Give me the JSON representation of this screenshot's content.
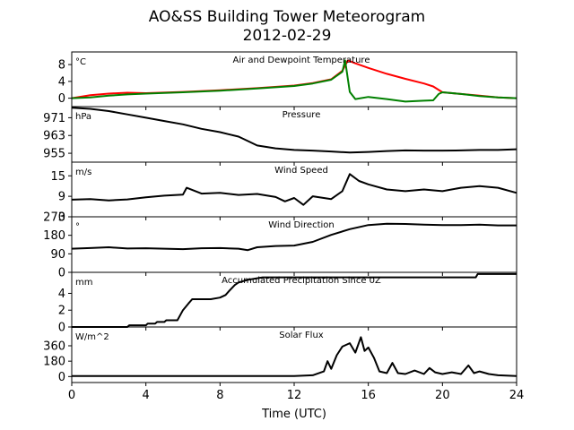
{
  "figure": {
    "title_line1": "AO&SS Building Tower Meteorogram",
    "title_line2": "2012-02-29",
    "xlabel": "Time (UTC)"
  },
  "chart_data": [
    {
      "type": "line",
      "title": "Air and Dewpoint Temperature",
      "unit": "°C",
      "xlim": [
        0,
        24
      ],
      "ylim": [
        -2,
        11
      ],
      "yticks": [
        "0",
        "4",
        "8"
      ],
      "ytick_values": [
        0,
        4,
        8
      ],
      "xtick_values": [
        0,
        4,
        8,
        12,
        16,
        20,
        24
      ],
      "xtick_labels": [
        "0",
        "4",
        "8",
        "12",
        "16",
        "20",
        "24"
      ],
      "series": [
        {
          "color": "#ff0000",
          "x": [
            0,
            1,
            2,
            3,
            4,
            6,
            8,
            10,
            12,
            13,
            14,
            14.6,
            14.9,
            15.3,
            16,
            17,
            18,
            19,
            19.5,
            20,
            21,
            22,
            23,
            24
          ],
          "values": [
            0,
            0.7,
            1.1,
            1.3,
            1.2,
            1.5,
            1.9,
            2.4,
            3.0,
            3.6,
            4.5,
            6.5,
            9.0,
            8.3,
            7.2,
            5.8,
            4.6,
            3.5,
            2.8,
            1.4,
            1.0,
            0.6,
            0.2,
            0
          ]
        },
        {
          "color": "#008000",
          "x": [
            0,
            1,
            2,
            3,
            4,
            6,
            8,
            10,
            12,
            13,
            14,
            14.6,
            14.75,
            15,
            15.3,
            16,
            17,
            18,
            19,
            19.5,
            19.8,
            20,
            21,
            22,
            23,
            24
          ],
          "values": [
            0,
            0.2,
            0.6,
            0.9,
            1.1,
            1.4,
            1.8,
            2.3,
            2.9,
            3.5,
            4.4,
            6.3,
            9.0,
            1.5,
            -0.2,
            0.3,
            -0.2,
            -0.8,
            -0.6,
            -0.5,
            1.0,
            1.4,
            1.0,
            0.5,
            0.2,
            0
          ]
        }
      ]
    },
    {
      "type": "line",
      "title": "Pressure",
      "unit": "hPa",
      "xlim": [
        0,
        24
      ],
      "ylim": [
        951,
        976
      ],
      "yticks": [
        "971",
        "963",
        "955"
      ],
      "ytick_values": [
        971,
        963,
        955
      ],
      "xtick_values": [
        0,
        4,
        8,
        12,
        16,
        20,
        24
      ],
      "series": [
        {
          "color": "#000000",
          "x": [
            0,
            1,
            2,
            3,
            4,
            5,
            6,
            7,
            8,
            9,
            9.5,
            10,
            11,
            12,
            13,
            14,
            15,
            16,
            17,
            18,
            19,
            20,
            21,
            22,
            23,
            24
          ],
          "values": [
            975.5,
            975,
            974,
            972.5,
            971,
            969.5,
            968,
            966,
            964.5,
            962.5,
            960.5,
            958.5,
            957.2,
            956.5,
            956.2,
            955.8,
            955.3,
            955.6,
            956,
            956.3,
            956.2,
            956.2,
            956.3,
            956.5,
            956.5,
            956.8
          ]
        }
      ]
    },
    {
      "type": "line",
      "title": "Wind Speed",
      "unit": "m/s",
      "xlim": [
        0,
        24
      ],
      "ylim": [
        3,
        19
      ],
      "yticks": [
        "15",
        "9",
        "3"
      ],
      "ytick_values": [
        15,
        9,
        3
      ],
      "xtick_values": [
        0,
        4,
        8,
        12,
        16,
        20,
        24
      ],
      "series": [
        {
          "color": "#000000",
          "x": [
            0,
            1,
            2,
            3,
            4,
            5,
            6,
            6.2,
            7,
            8,
            9,
            10,
            11,
            11.5,
            12,
            12.5,
            13,
            14,
            14.6,
            15,
            15.5,
            16,
            17,
            18,
            19,
            20,
            21,
            22,
            23,
            24
          ],
          "values": [
            8,
            8.2,
            7.8,
            8.1,
            8.7,
            9.2,
            9.5,
            11.5,
            9.8,
            10,
            9.4,
            9.7,
            8.8,
            7.5,
            8.5,
            6.5,
            9,
            8.2,
            10.5,
            15.5,
            13.5,
            12.5,
            11,
            10.5,
            11,
            10.5,
            11.5,
            12,
            11.5,
            10
          ]
        }
      ]
    },
    {
      "type": "line",
      "title": "Wind Direction",
      "unit": "°",
      "xlim": [
        0,
        24
      ],
      "ylim": [
        0,
        270
      ],
      "yticks": [
        "270",
        "180",
        "90",
        "0"
      ],
      "ytick_values": [
        270,
        180,
        90,
        0
      ],
      "xtick_values": [
        0,
        4,
        8,
        12,
        16,
        20,
        24
      ],
      "series": [
        {
          "color": "#000000",
          "x": [
            0,
            1,
            2,
            3,
            4,
            5,
            6,
            7,
            8,
            9,
            9.5,
            10,
            11,
            12,
            13,
            14,
            15,
            16,
            17,
            18,
            19,
            20,
            21,
            22,
            23,
            24
          ],
          "values": [
            115,
            118,
            122,
            116,
            117,
            115,
            113,
            117,
            118,
            115,
            108,
            122,
            128,
            130,
            148,
            182,
            210,
            230,
            236,
            235,
            232,
            230,
            230,
            232,
            228,
            228
          ]
        }
      ]
    },
    {
      "type": "line",
      "title": "Accumulated Precipitation Since 0Z",
      "unit": "mm",
      "xlim": [
        0,
        24
      ],
      "ylim": [
        0,
        6.5
      ],
      "yticks": [
        "4",
        "2",
        "0"
      ],
      "ytick_values": [
        4,
        2,
        0
      ],
      "xtick_values": [
        0,
        4,
        8,
        12,
        16,
        20,
        24
      ],
      "series": [
        {
          "color": "#000000",
          "x": [
            0,
            3,
            3.1,
            4,
            4.1,
            4.5,
            4.6,
            5,
            5.1,
            5.7,
            6,
            6.3,
            6.5,
            7,
            7.5,
            8,
            8.3,
            8.5,
            8.8,
            9,
            9.5,
            10,
            10.3,
            15,
            16,
            17,
            21.8,
            21.9,
            24
          ],
          "values": [
            0,
            0,
            0.2,
            0.2,
            0.4,
            0.4,
            0.6,
            0.6,
            0.8,
            0.8,
            2.0,
            2.8,
            3.3,
            3.3,
            3.3,
            3.5,
            3.8,
            4.3,
            5.0,
            5.3,
            5.6,
            5.8,
            5.9,
            5.9,
            5.9,
            5.9,
            5.9,
            6.3,
            6.3
          ]
        }
      ]
    },
    {
      "type": "line",
      "title": "Solar Flux",
      "unit": "W/m^2",
      "xlim": [
        0,
        24
      ],
      "ylim": [
        -70,
        580
      ],
      "yticks": [
        "360",
        "180",
        "0"
      ],
      "ytick_values": [
        360,
        180,
        0
      ],
      "xtick_values": [
        0,
        4,
        8,
        12,
        16,
        20,
        24
      ],
      "series": [
        {
          "color": "#000000",
          "x": [
            0,
            4,
            8,
            10,
            12,
            13,
            13.6,
            13.8,
            14,
            14.3,
            14.6,
            15,
            15.3,
            15.6,
            15.8,
            16,
            16.3,
            16.6,
            17,
            17.3,
            17.6,
            18,
            18.5,
            19,
            19.3,
            19.6,
            20,
            20.5,
            21,
            21.4,
            21.7,
            22,
            22.5,
            23,
            24
          ],
          "values": [
            5,
            5,
            5,
            6,
            6,
            15,
            60,
            180,
            90,
            250,
            350,
            390,
            280,
            460,
            300,
            340,
            220,
            60,
            40,
            160,
            40,
            30,
            70,
            30,
            100,
            50,
            30,
            50,
            30,
            130,
            40,
            60,
            30,
            15,
            5
          ]
        }
      ]
    }
  ]
}
